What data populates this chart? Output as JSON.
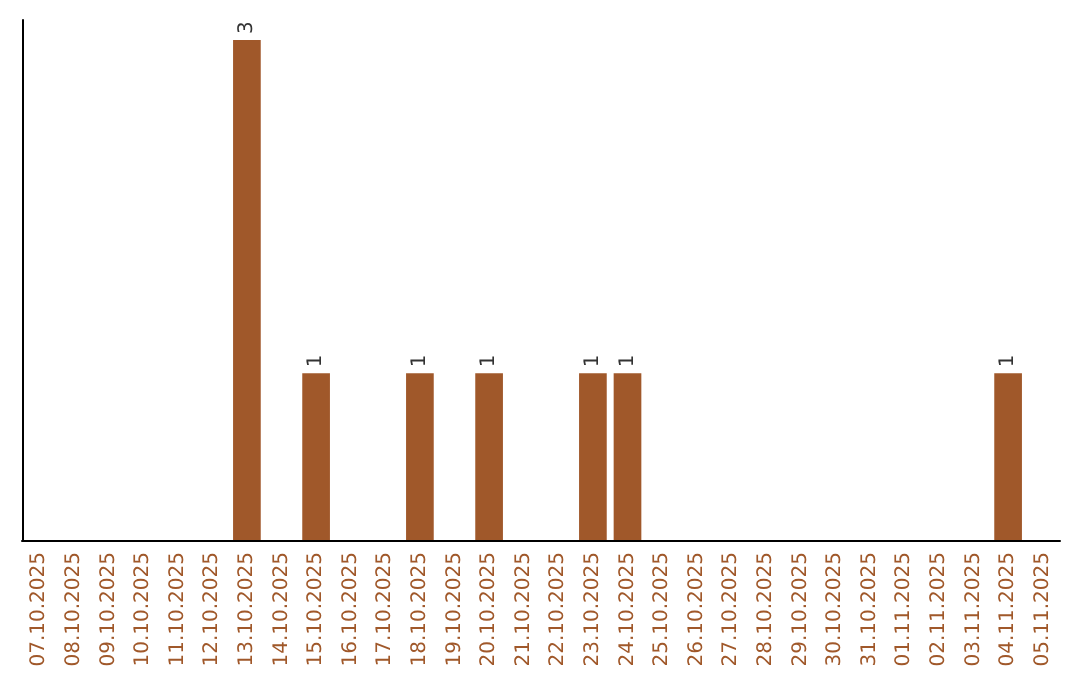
{
  "chart_data": {
    "type": "bar",
    "categories": [
      "07.10.2025",
      "08.10.2025",
      "09.10.2025",
      "10.10.2025",
      "11.10.2025",
      "12.10.2025",
      "13.10.2025",
      "14.10.2025",
      "15.10.2025",
      "16.10.2025",
      "17.10.2025",
      "18.10.2025",
      "19.10.2025",
      "20.10.2025",
      "21.10.2025",
      "22.10.2025",
      "23.10.2025",
      "24.10.2025",
      "25.10.2025",
      "26.10.2025",
      "27.10.2025",
      "28.10.2025",
      "29.10.2025",
      "30.10.2025",
      "31.10.2025",
      "01.11.2025",
      "02.11.2025",
      "03.11.2025",
      "04.11.2025",
      "05.11.2025"
    ],
    "values": [
      0,
      0,
      0,
      0,
      0,
      0,
      3,
      0,
      1,
      0,
      0,
      1,
      0,
      1,
      0,
      0,
      1,
      1,
      0,
      0,
      0,
      0,
      0,
      0,
      0,
      0,
      0,
      0,
      1,
      0
    ],
    "value_labels": [
      null,
      null,
      null,
      null,
      null,
      null,
      "3",
      null,
      "1",
      null,
      null,
      "1",
      null,
      "1",
      null,
      null,
      "1",
      "1",
      null,
      null,
      null,
      null,
      null,
      null,
      null,
      null,
      null,
      null,
      "1",
      null
    ],
    "color": "#a0582a",
    "ylim": [
      0,
      3
    ],
    "tick_labels": "x"
  }
}
